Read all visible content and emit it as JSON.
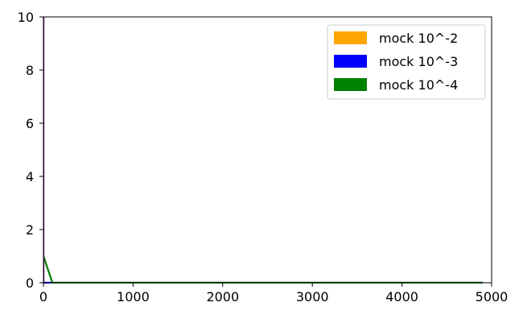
{
  "chart_data": {
    "type": "line",
    "xlim": [
      0,
      5000
    ],
    "ylim": [
      0,
      10
    ],
    "xticks": [
      0,
      1000,
      2000,
      3000,
      4000,
      5000
    ],
    "yticks": [
      0,
      2,
      4,
      6,
      8,
      10
    ],
    "grid": false,
    "legend_position": "top-right",
    "series": [
      {
        "name": "mock 10^-2",
        "color": "#ffa500",
        "x": [
          0,
          0
        ],
        "y": [
          10,
          0
        ]
      },
      {
        "name": "mock 10^-3",
        "color": "#0000ff",
        "x": [
          0,
          0,
          100,
          4900
        ],
        "y": [
          10,
          0,
          0,
          0
        ]
      },
      {
        "name": "mock 10^-4",
        "color": "#008000",
        "x": [
          0,
          100,
          200,
          4900
        ],
        "y": [
          1.0,
          0.0,
          0.0,
          0.0
        ]
      }
    ],
    "overlay_line": {
      "color": "#800080",
      "x": [
        0,
        0
      ],
      "y": [
        10,
        0
      ]
    }
  }
}
